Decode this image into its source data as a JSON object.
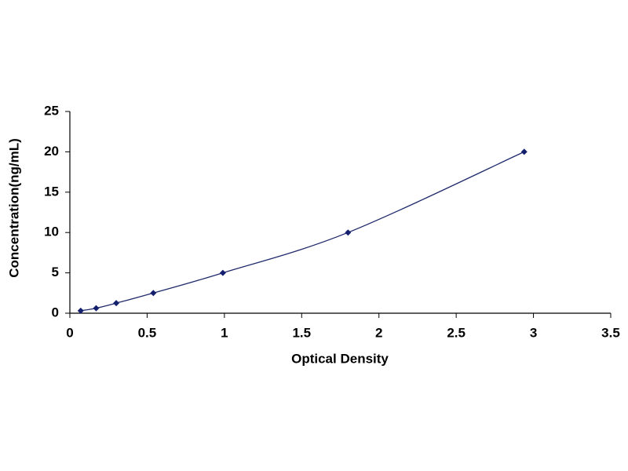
{
  "chart_data": {
    "type": "line",
    "x": [
      0.07,
      0.17,
      0.3,
      0.54,
      0.99,
      1.8,
      2.94
    ],
    "values": [
      0.31,
      0.625,
      1.25,
      2.5,
      5,
      10,
      20
    ],
    "color": "#1f2a6b",
    "marker_color": "#14206e",
    "markers": true,
    "xlim": [
      0,
      3.5
    ],
    "xticks": [
      0,
      0.5,
      1,
      1.5,
      2,
      2.5,
      3,
      3.5
    ],
    "ylim": [
      0,
      25
    ],
    "yticks": [
      0,
      5,
      10,
      15,
      20,
      25
    ],
    "xlabel": "Optical Density",
    "ylabel": "Concentration(ng/mL)",
    "grid": false
  }
}
